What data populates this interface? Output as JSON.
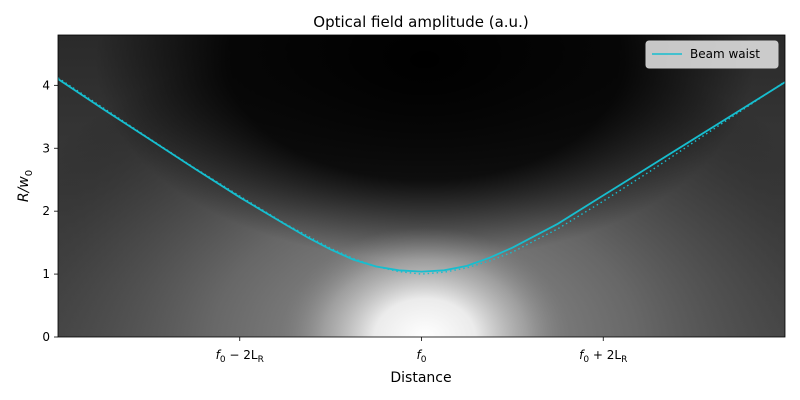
{
  "chart_data": {
    "type": "heatmap",
    "title": "Optical field amplitude (a.u.)",
    "xlabel": "Distance",
    "ylabel_main": "R/w",
    "ylabel_sub": "0",
    "ylim": [
      0,
      4.8
    ],
    "xlim": [
      -4,
      4
    ],
    "colormap": "gray",
    "x_ticks": [
      {
        "x": -2,
        "main": "f",
        "sub": "0",
        "rest": " − 2L",
        "rest_sub": "R"
      },
      {
        "x": 0,
        "main": "f",
        "sub": "0",
        "rest": "",
        "rest_sub": ""
      },
      {
        "x": 2,
        "main": "f",
        "sub": "0",
        "rest": " + 2L",
        "rest_sub": "R"
      }
    ],
    "y_ticks": [
      0,
      1,
      2,
      3,
      4
    ],
    "series": [
      {
        "name": "Beam waist",
        "style": "solid",
        "color": "#17becf",
        "x": [
          -4.0,
          -3.5,
          -3.0,
          -2.5,
          -2.0,
          -1.5,
          -1.25,
          -1.0,
          -0.75,
          -0.5,
          -0.25,
          0.0,
          0.25,
          0.5,
          0.75,
          1.0,
          1.5,
          2.0,
          2.5,
          3.0,
          3.5,
          4.0
        ],
        "y": [
          4.1,
          3.62,
          3.15,
          2.68,
          2.22,
          1.79,
          1.58,
          1.39,
          1.23,
          1.12,
          1.06,
          1.04,
          1.06,
          1.13,
          1.26,
          1.42,
          1.8,
          2.25,
          2.7,
          3.15,
          3.6,
          4.05
        ]
      },
      {
        "style": "dotted",
        "color": "#17becf",
        "x": [
          -4.0,
          -3.5,
          -3.0,
          -2.5,
          -2.0,
          -1.5,
          -1.0,
          -0.75,
          -0.5,
          -0.25,
          0.0,
          0.25,
          0.5,
          0.75,
          1.0,
          1.5,
          2.0,
          2.5,
          3.0,
          3.5,
          4.0
        ],
        "y": [
          4.12,
          3.64,
          3.16,
          2.69,
          2.24,
          1.8,
          1.41,
          1.25,
          1.12,
          1.04,
          1.0,
          1.03,
          1.1,
          1.21,
          1.35,
          1.72,
          2.16,
          2.62,
          3.1,
          3.58,
          4.06
        ]
      }
    ],
    "legend": {
      "position": "top-right",
      "entries": [
        "Beam waist"
      ]
    }
  }
}
